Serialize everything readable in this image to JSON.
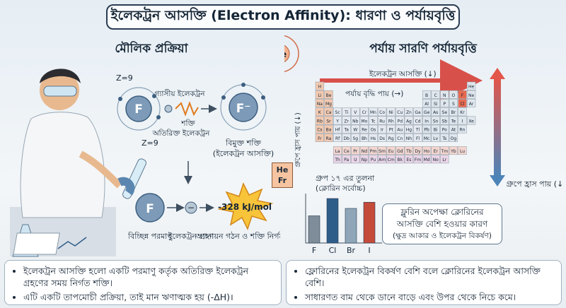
{
  "title": "ইলেকট্রন আসক্তি (Electron Affinity): ধারণা ও পর্যায়বৃত্তি",
  "left": {
    "heading": "মৌলিক প্রক্রিয়া",
    "z_top": "Z=9",
    "z_bottom": "Z=9",
    "atom_f": "F",
    "atom_f_ion": "F⁻",
    "atom_f_lower": "F",
    "gas_electron": "গ্যাসীয় ইলেকট্রন",
    "energy_label": "শক্তি",
    "extra_electron": "অতিরিক্ত ইলেকট্রন",
    "released_energy": "বিমুক্ত শক্তি",
    "released_energy_sub": "(ইলেকট্রন আসক্তি)",
    "energy_value": "-328 kJ/mol",
    "isolated_atom": "বিচ্ছিন্ন পরমাণু",
    "electron_gain": "ইলেকট্রন গ্রহণ",
    "anion_formation": "অ্যানায়ন গঠন ও শক্তি নির্গমন",
    "electron_sign": "−"
  },
  "he_fr": {
    "top": "He",
    "bottom": "Fr"
  },
  "ne_atom": "Ne",
  "right": {
    "heading": "পর্যায় সারণি পর্যায়বৃত্তি",
    "ea_arrow": "ইলেকট্রন আসক্তি (↓)",
    "period_arrow": "পর্যায় বৃদ্ধি পায় (→)",
    "group_decrease": "গ্রুপে হ্রাস পায় (↓)",
    "left_vertical": "গ্রুপে হ্রাস পায় (↓)",
    "compare_title": "গ্রুপ ১৭ এর তুলনা",
    "compare_sub": "(ক্লোরিন সর্বোচ্চ)",
    "reason_line1": "ফ্লুরিন অপেক্ষা ক্লোরিনের",
    "reason_line2": "আসক্তি বেশি হওয়ার কারণ",
    "reason_sub": "(ক্ষুদ্র আকার ও ইলেকট্রন বিকর্ষণ)"
  },
  "periodic_rows": [
    [
      "H",
      "",
      "",
      "",
      "",
      "",
      "",
      "",
      "",
      "",
      "",
      "",
      "",
      "",
      "",
      "",
      "",
      "He"
    ],
    [
      "Li",
      "Be",
      "",
      "",
      "",
      "",
      "",
      "",
      "",
      "",
      "",
      "",
      "B",
      "C",
      "N",
      "O",
      "F",
      "Ne"
    ],
    [
      "Na",
      "Mg",
      "",
      "",
      "",
      "",
      "",
      "",
      "",
      "",
      "",
      "",
      "Al",
      "Si",
      "P",
      "S",
      "Cl",
      "Ar"
    ],
    [
      "K",
      "Ca",
      "Sc",
      "Ti",
      "V",
      "Cr",
      "Mn",
      "Co",
      "Ni",
      "Cu",
      "Zn",
      "Ga",
      "Ge",
      "As",
      "Se",
      "Br",
      "Kr",
      ""
    ],
    [
      "Rb",
      "Sr",
      "Y",
      "Zr",
      "Nb",
      "Mo",
      "Tc",
      "Ru",
      "Rh",
      "Pd",
      "Ag",
      "Cd",
      "In",
      "Sn",
      "Sb",
      "Te",
      "I",
      "Xe"
    ],
    [
      "Cs",
      "Ba",
      "Hf",
      "Ta",
      "W",
      "Re",
      "Os",
      "Ir",
      "Pt",
      "Au",
      "Hg",
      "Tl",
      "Pb",
      "Bi",
      "Po",
      "At",
      "Rn",
      ""
    ],
    [
      "Fr",
      "Ra",
      "Rf",
      "Db",
      "Sg",
      "Bh",
      "Hs",
      "Ds",
      "Rg",
      "Cn",
      "Nh",
      "Fl",
      "Mc",
      "Lv",
      "Ts",
      "Og",
      "",
      ""
    ]
  ],
  "f_block_rows": [
    [
      "La",
      "Ce",
      "Pr",
      "Nd",
      "Pm",
      "Sm",
      "Eu",
      "Gd",
      "Tb",
      "Dy",
      "Ho",
      "Er",
      "Tm",
      "Yb",
      "Lu"
    ],
    [
      "Th",
      "Pa",
      "U",
      "Np",
      "Pu",
      "Am",
      "Cm",
      "Bk",
      "Es",
      "Fm",
      "Md",
      "No",
      "Lr"
    ]
  ],
  "chart_data": {
    "type": "bar",
    "categories": [
      "F",
      "Cl",
      "Br",
      "I"
    ],
    "values": [
      2.2,
      3.6,
      2.8,
      3.3
    ],
    "colors": [
      "#7f8c99",
      "#2e5d8a",
      "#8fa6b8",
      "#c44a3a"
    ],
    "title": "গ্রুপ ১৭ এর তুলনা",
    "subtitle": "(ক্লোরিন সর্বোচ্চ)",
    "ylim": [
      0,
      4
    ]
  },
  "bottom_left": [
    "ইলেকট্রন আসক্তি হলো একটি পরমাণু কর্তৃক অতিরিক্ত ইলেকট্রন গ্রহণের সময় নির্গত শক্তি।",
    "এটি একটি তাপমোচী প্রক্রিয়া, তাই মান ঋণাত্মক হয় (-ΔH)।"
  ],
  "bottom_right": [
    "ফ্লোরিনের ইলেকট্রন বিকর্ষণ বেশি বলে ক্লোরিনের ইলেকট্রন আসক্তি বেশি।",
    "সাধারণত বাম থেকে ডানে বাড়ে এবং উপর থেকে নিচে কমে।"
  ]
}
